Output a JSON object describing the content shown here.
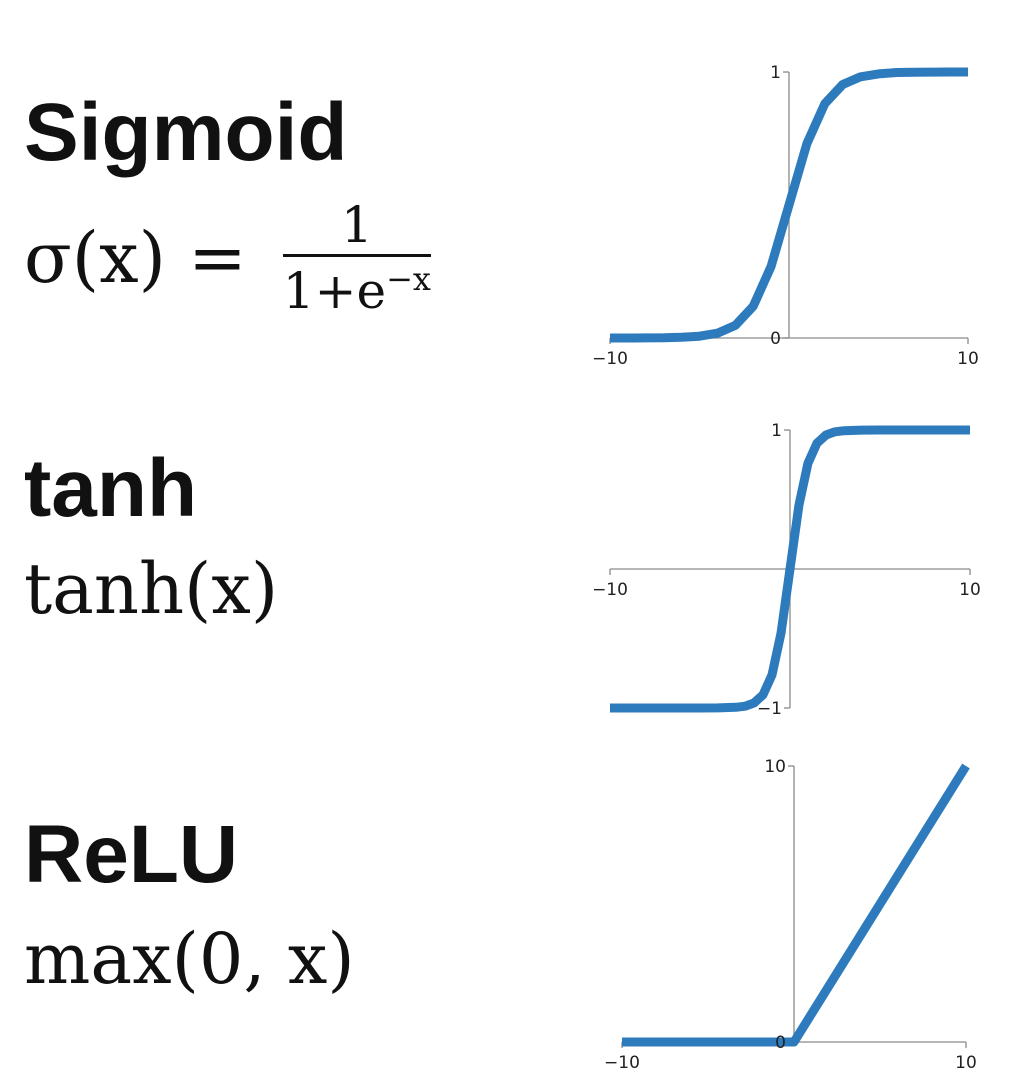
{
  "panels": [
    {
      "name": "Sigmoid",
      "formula": {
        "lhs": "σ(x) =",
        "numerator": "1",
        "denominator_base": "1+e",
        "denominator_exponent": "−x"
      }
    },
    {
      "name": "tanh",
      "formula": {
        "text": "tanh(x)"
      }
    },
    {
      "name": "ReLU",
      "formula": {
        "text": "max(0, x)"
      }
    }
  ],
  "colors": {
    "curve": "#2d7bbd",
    "axis": "#8a8a8a",
    "text": "#111111"
  },
  "chart_data": [
    {
      "type": "line",
      "function": "sigmoid",
      "series": [
        {
          "x": [
            -10,
            -9,
            -8,
            -7,
            -6,
            -5,
            -4,
            -3,
            -2,
            -1,
            0,
            1,
            2,
            3,
            4,
            5,
            6,
            7,
            8,
            9,
            10
          ],
          "y": [
            4.54e-05,
            0.000123,
            0.000335,
            0.000911,
            0.00247,
            0.00669,
            0.018,
            0.0474,
            0.119,
            0.269,
            0.5,
            0.731,
            0.881,
            0.953,
            0.982,
            0.993,
            0.998,
            0.999,
            0.9997,
            0.9999,
            0.99995
          ]
        }
      ],
      "xlim": [
        -10,
        10
      ],
      "ylim": [
        0,
        1
      ],
      "xticks": [
        "−10",
        "10"
      ],
      "yticks": [
        "1",
        "0"
      ],
      "grid": false
    },
    {
      "type": "line",
      "function": "tanh",
      "series": [
        {
          "x": [
            -10,
            -9,
            -8,
            -7,
            -6,
            -5,
            -4,
            -3,
            -2.5,
            -2,
            -1.5,
            -1,
            -0.5,
            0,
            0.5,
            1,
            1.5,
            2,
            2.5,
            3,
            4,
            5,
            6,
            7,
            8,
            9,
            10
          ],
          "y": [
            -1,
            -1,
            -1,
            -1,
            -0.99999,
            -0.9999,
            -0.9993,
            -0.995,
            -0.987,
            -0.964,
            -0.905,
            -0.762,
            -0.462,
            0,
            0.462,
            0.762,
            0.905,
            0.964,
            0.987,
            0.995,
            0.9993,
            0.9999,
            0.99999,
            1,
            1,
            1,
            1
          ]
        }
      ],
      "xlim": [
        -10,
        10
      ],
      "ylim": [
        -1,
        1
      ],
      "xticks": [
        "−10",
        "10"
      ],
      "yticks": [
        "1",
        "−1"
      ],
      "grid": false
    },
    {
      "type": "line",
      "function": "relu",
      "series": [
        {
          "x": [
            -10,
            0,
            10
          ],
          "y": [
            0,
            0,
            10
          ]
        }
      ],
      "xlim": [
        -10,
        10
      ],
      "ylim": [
        0,
        10
      ],
      "xticks": [
        "−10",
        "10"
      ],
      "yticks": [
        "10",
        "0"
      ],
      "grid": false
    }
  ]
}
